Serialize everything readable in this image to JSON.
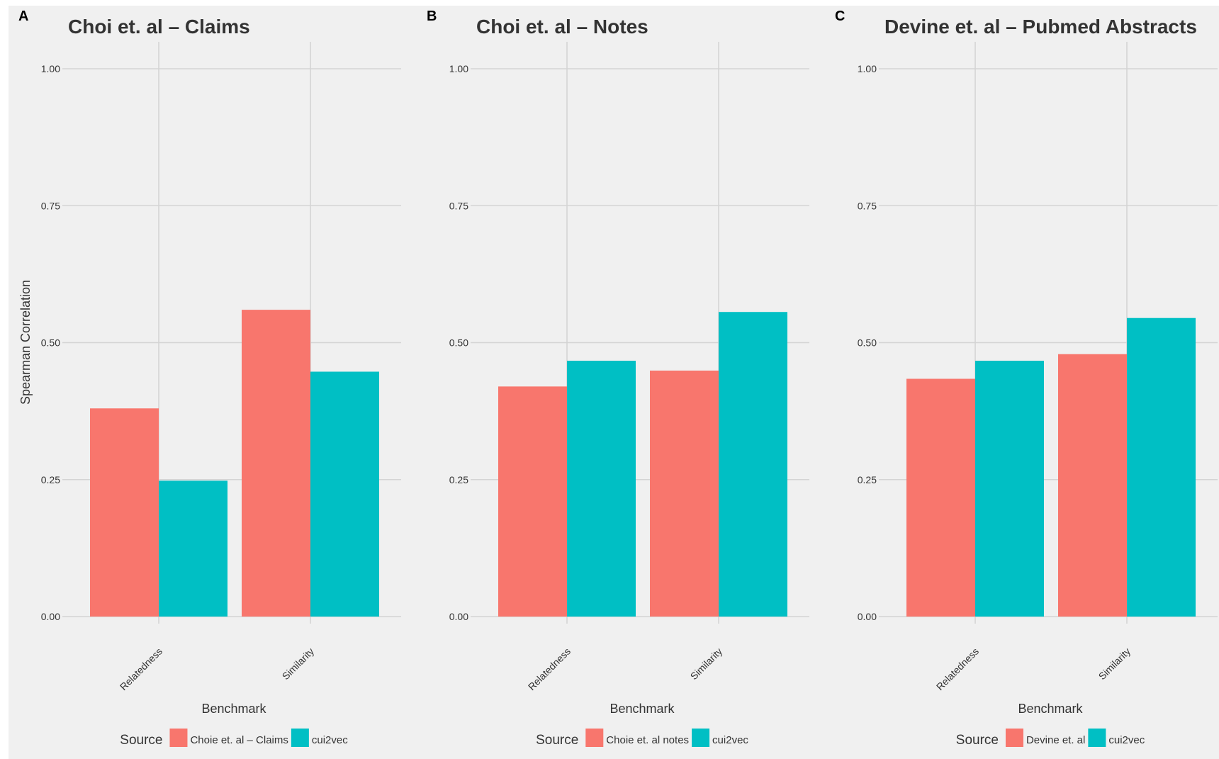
{
  "chart_data": [
    {
      "type": "bar",
      "panel": "A",
      "title": "Choi et. al – Claims",
      "xlabel": "Benchmark",
      "ylabel": "Spearman Correlation",
      "ylim": [
        0,
        1
      ],
      "yticks": [
        "0.00",
        "0.25",
        "0.50",
        "0.75",
        "1.00"
      ],
      "categories": [
        "Relatedness",
        "Similarity"
      ],
      "legend_title": "Source",
      "series": [
        {
          "name": "Choie et. al – Claims",
          "color": "#F8766D",
          "values": [
            0.38,
            0.56
          ]
        },
        {
          "name": "cui2vec",
          "color": "#00BFC4",
          "values": [
            0.248,
            0.447
          ]
        }
      ]
    },
    {
      "type": "bar",
      "panel": "B",
      "title": "Choi et. al – Notes",
      "xlabel": "Benchmark",
      "ylabel": "",
      "ylim": [
        0,
        1
      ],
      "yticks": [
        "0.00",
        "0.25",
        "0.50",
        "0.75",
        "1.00"
      ],
      "categories": [
        "Relatedness",
        "Similarity"
      ],
      "legend_title": "Source",
      "series": [
        {
          "name": "Choie et. al notes",
          "color": "#F8766D",
          "values": [
            0.42,
            0.449
          ]
        },
        {
          "name": "cui2vec",
          "color": "#00BFC4",
          "values": [
            0.467,
            0.556
          ]
        }
      ]
    },
    {
      "type": "bar",
      "panel": "C",
      "title": "Devine et. al – Pubmed Abstracts",
      "xlabel": "Benchmark",
      "ylabel": "",
      "ylim": [
        0,
        1
      ],
      "yticks": [
        "0.00",
        "0.25",
        "0.50",
        "0.75",
        "1.00"
      ],
      "categories": [
        "Relatedness",
        "Similarity"
      ],
      "legend_title": "Source",
      "series": [
        {
          "name": "Devine et. al",
          "color": "#F8766D",
          "values": [
            0.434,
            0.479
          ]
        },
        {
          "name": "cui2vec",
          "color": "#00BFC4",
          "values": [
            0.467,
            0.545
          ]
        }
      ]
    }
  ]
}
